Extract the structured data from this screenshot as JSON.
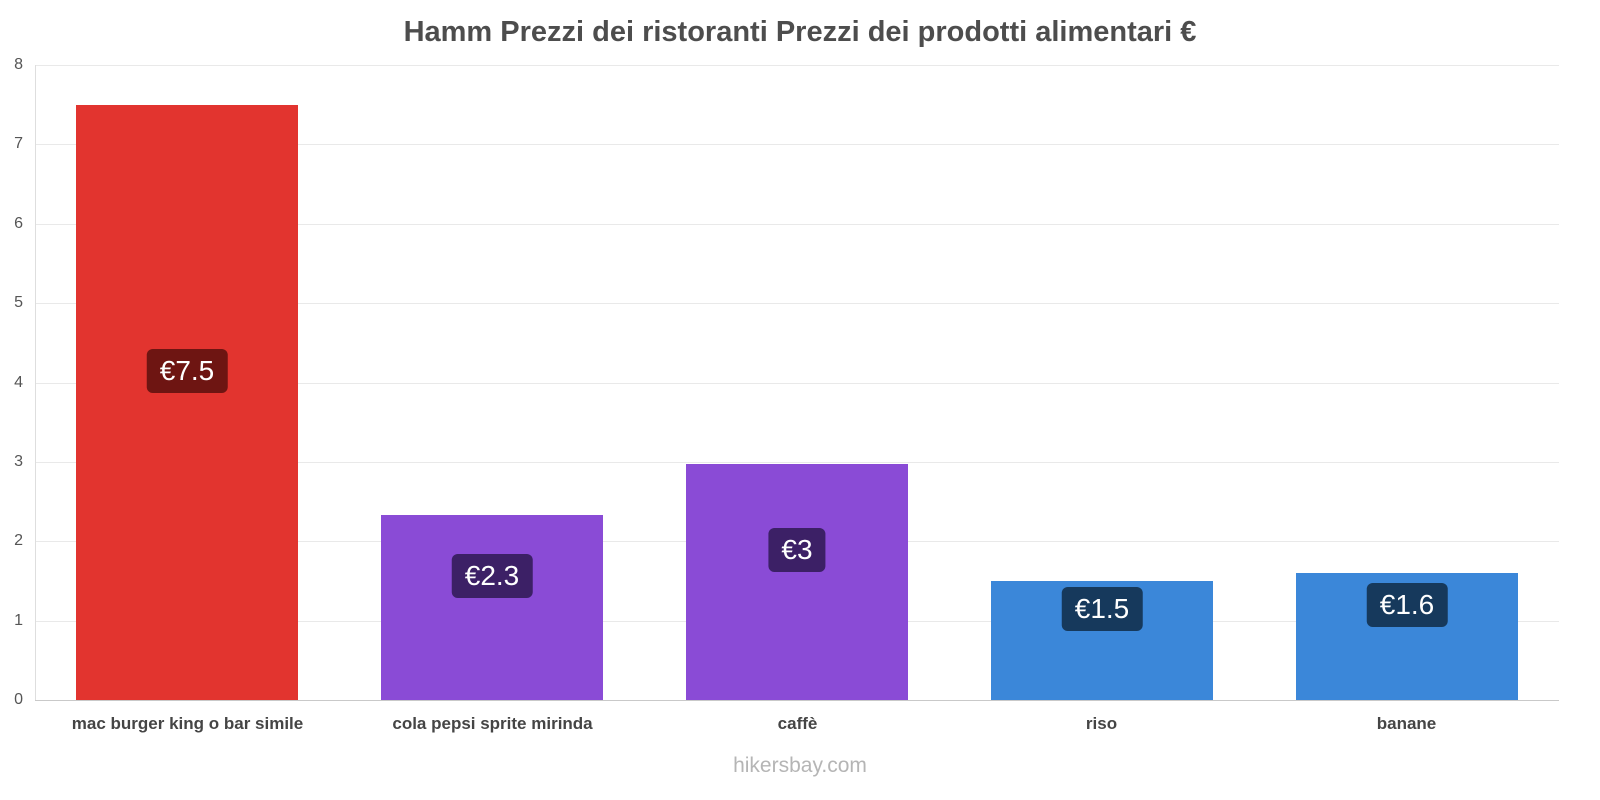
{
  "title": "Hamm Prezzi dei ristoranti Prezzi dei prodotti alimentari €",
  "footer": "hikersbay.com",
  "chart_data": {
    "type": "bar",
    "title": "Hamm Prezzi dei ristoranti Prezzi dei prodotti alimentari €",
    "categories": [
      "mac burger king o bar simile",
      "cola pepsi sprite mirinda",
      "caffè",
      "riso",
      "banane"
    ],
    "values": [
      7.5,
      2.33,
      2.97,
      1.5,
      1.6
    ],
    "value_labels": [
      "€7.5",
      "€2.3",
      "€3",
      "€1.5",
      "€1.6"
    ],
    "bar_colors": [
      "#e2342f",
      "#8a4bd6",
      "#8a4bd6",
      "#3b87d9",
      "#3b87d9"
    ],
    "badge_colors": [
      "#6e1512",
      "#3c2066",
      "#3c2066",
      "#16395c",
      "#16395c"
    ],
    "xlabel": "",
    "ylabel": "",
    "ylim": [
      0,
      8
    ],
    "yticks": [
      0,
      1,
      2,
      3,
      4,
      5,
      6,
      7,
      8
    ],
    "grid": true,
    "legend": false,
    "watermark": "hikersbay.com"
  }
}
